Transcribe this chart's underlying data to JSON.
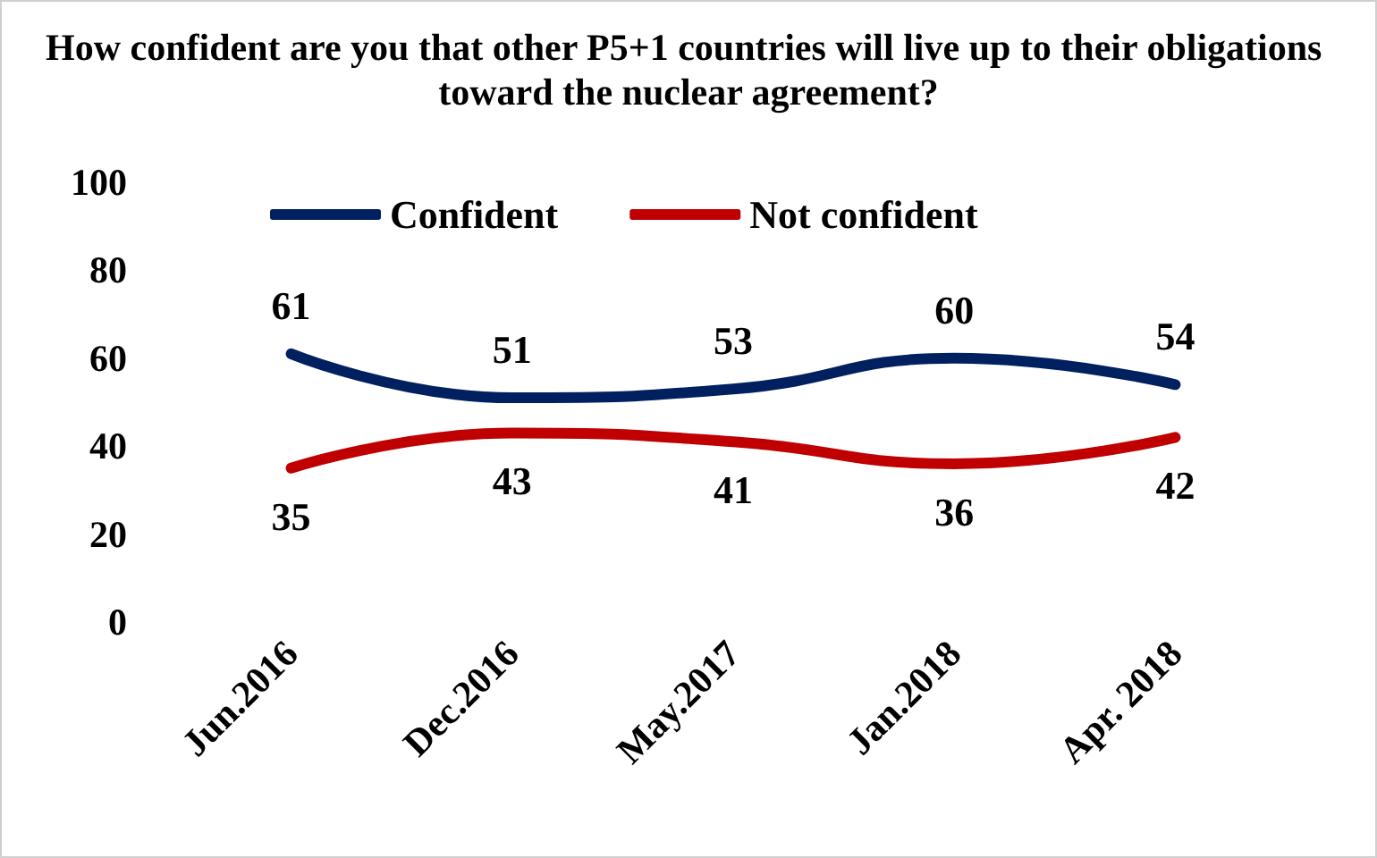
{
  "chart_data": {
    "type": "line",
    "title": "How confident are you that other P5+1 countries will live up to their obligations toward the nuclear agreement?",
    "categories": [
      "Jun.2016",
      "Dec.2016",
      "May.2017",
      "Jan.2018",
      "Apr. 2018"
    ],
    "series": [
      {
        "name": "Confident",
        "color": "#002060",
        "values": [
          61,
          51,
          53,
          60,
          54
        ]
      },
      {
        "name": "Not confident",
        "color": "#c00000",
        "values": [
          35,
          43,
          41,
          36,
          42
        ]
      }
    ],
    "ylim": [
      0,
      100
    ],
    "yticks": [
      0,
      20,
      40,
      60,
      80,
      100
    ],
    "grid": false,
    "legend": "top",
    "data_labels": true,
    "marker": "none",
    "line_style": "solid"
  }
}
